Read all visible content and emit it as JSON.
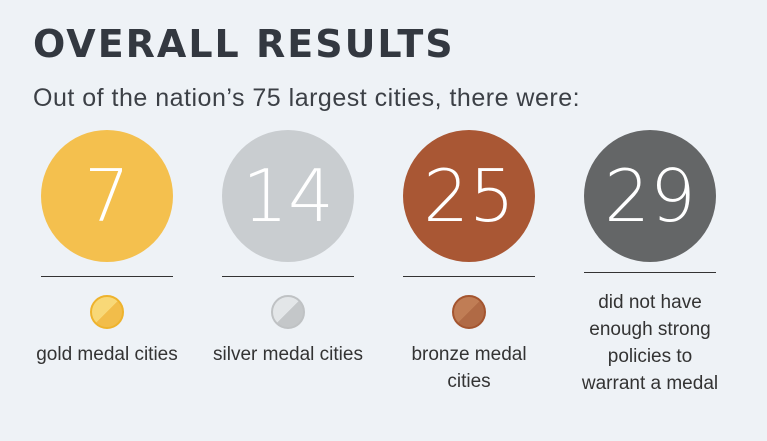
{
  "header": {
    "title": "OVERALL RESULTS",
    "subtitle": "Out of the nation’s 75 largest cities, there were:"
  },
  "results": [
    {
      "count": "7",
      "label": "gold medal cities",
      "color": "#f4c04e",
      "medal": "gold-medal"
    },
    {
      "count": "14",
      "label": "silver medal cities",
      "color": "#c9cdd0",
      "medal": "silver-medal"
    },
    {
      "count": "25",
      "label": "bronze medal cities",
      "color": "#a95734",
      "medal": "bronze-medal"
    },
    {
      "count": "29",
      "label": "did not have enough strong policies to warrant a medal",
      "color": "#646667",
      "medal": null
    }
  ]
}
